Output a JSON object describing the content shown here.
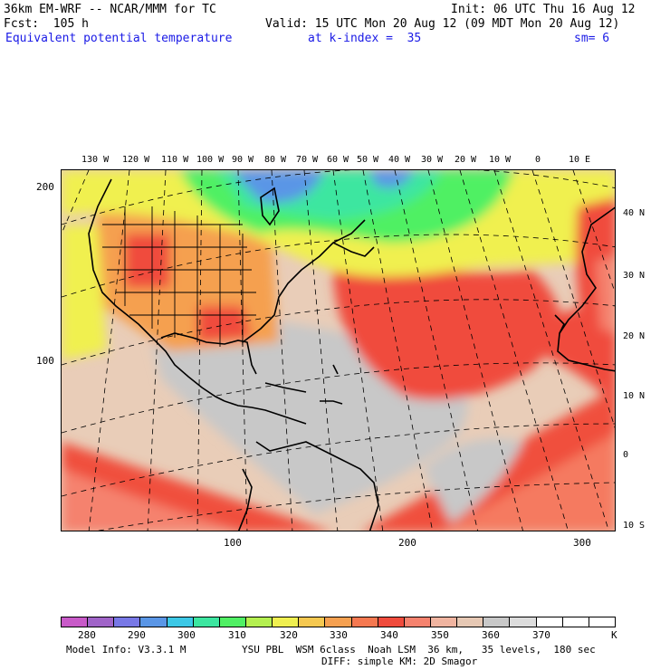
{
  "header": {
    "line1_left": "36km EM-WRF -- NCAR/MMM for TC",
    "line1_right": "Init: 06 UTC Thu 16 Aug 12",
    "line2_left": "Fcst:  105 h",
    "line2_right": "Valid: 15 UTC Mon 20 Aug 12 (09 MDT Mon 20 Aug 12)",
    "line3_field": "Equivalent potential temperature",
    "line3_level": "at k-index =  35",
    "line3_smooth": "sm= 6"
  },
  "map": {
    "top_lon_labels": [
      "130 W",
      "120 W",
      "110 W",
      "100 W",
      "90 W",
      "80 W",
      "70 W",
      "60 W",
      "50 W",
      "40 W",
      "30 W",
      "20 W",
      "10 W",
      "0",
      "10 E"
    ],
    "right_lat_labels": [
      "40 N",
      "30 N",
      "20 N",
      "10 N",
      "0",
      "10 S"
    ],
    "left_grid_labels": [
      "200",
      "100"
    ],
    "bottom_grid_labels": [
      "100",
      "200",
      "300"
    ]
  },
  "colorbar": {
    "colors": [
      "#c85ac8",
      "#a064c8",
      "#7878e6",
      "#5a96e6",
      "#3cc8e6",
      "#3ce6a0",
      "#50f064",
      "#b4f050",
      "#f0f050",
      "#f5c850",
      "#f5a050",
      "#f57850",
      "#f04b3c",
      "#f5826e",
      "#f0b4a0",
      "#e6c8b4",
      "#c8c8c8",
      "#dcdcdc",
      "#ffffff",
      "#ffffff",
      "#ffffff"
    ],
    "tick_labels": [
      "280",
      "290",
      "300",
      "310",
      "320",
      "330",
      "340",
      "350",
      "360",
      "370",
      "K"
    ]
  },
  "footer": {
    "line1_left": "Model Info: V3.3.1 M",
    "line1_right": "YSU PBL  WSM 6class  Noah LSM  36 km,   35 levels,  180 sec",
    "line2": "DIFF: simple KM: 2D Smagor"
  }
}
